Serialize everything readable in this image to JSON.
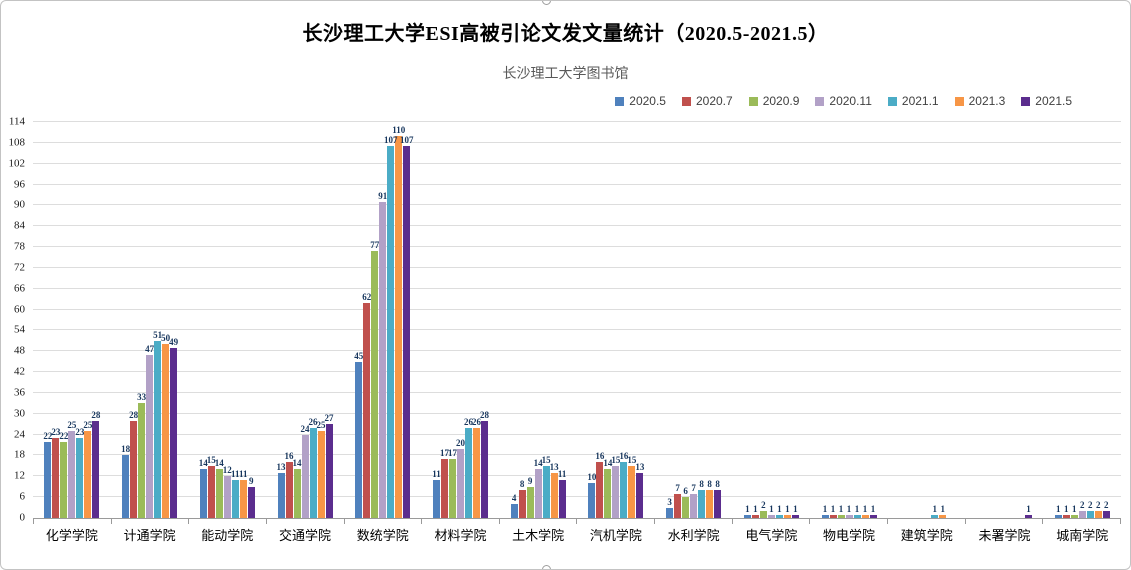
{
  "chart_data": {
    "type": "bar",
    "title": "长沙理工大学ESI高被引论文发文量统计（2020.5-2021.5）",
    "subtitle": "长沙理工大学图书馆",
    "categories": [
      "化学学院",
      "计通学院",
      "能动学院",
      "交通学院",
      "数统学院",
      "材料学院",
      "土木学院",
      "汽机学院",
      "水利学院",
      "电气学院",
      "物电学院",
      "建筑学院",
      "未署学院",
      "城南学院"
    ],
    "series": [
      {
        "name": "2020.5",
        "color": "#4f81bd",
        "values": [
          22,
          18,
          14,
          13,
          45,
          11,
          4,
          10,
          3,
          1,
          1,
          0,
          0,
          1
        ]
      },
      {
        "name": "2020.7",
        "color": "#c0504d",
        "values": [
          23,
          28,
          15,
          16,
          62,
          17,
          8,
          16,
          7,
          1,
          1,
          0,
          0,
          1
        ]
      },
      {
        "name": "2020.9",
        "color": "#9bbb59",
        "values": [
          22,
          33,
          14,
          14,
          77,
          17,
          9,
          14,
          6,
          2,
          1,
          0,
          0,
          1
        ]
      },
      {
        "name": "2020.11",
        "color": "#b2a1c7",
        "values": [
          25,
          47,
          12,
          24,
          91,
          20,
          14,
          15,
          7,
          1,
          1,
          0,
          0,
          2
        ]
      },
      {
        "name": "2021.1",
        "color": "#4bacc6",
        "values": [
          23,
          51,
          11,
          26,
          107,
          26,
          15,
          16,
          8,
          1,
          1,
          1,
          0,
          2
        ]
      },
      {
        "name": "2021.3",
        "color": "#f79646",
        "values": [
          25,
          50,
          11,
          25,
          110,
          26,
          13,
          15,
          8,
          1,
          1,
          1,
          0,
          2
        ]
      },
      {
        "name": "2021.5",
        "color": "#5b2d8e",
        "values": [
          28,
          49,
          9,
          27,
          107,
          28,
          11,
          13,
          8,
          1,
          1,
          0,
          1,
          2
        ]
      }
    ],
    "ylim": [
      0,
      114
    ],
    "ytick_step": 6,
    "grid": true,
    "data_labels": true,
    "legend_position": "top-right"
  },
  "frame": {
    "gridline_color": "#dddddd",
    "axis_color": "#9a9a9a",
    "data_label_color": "#17365d"
  }
}
